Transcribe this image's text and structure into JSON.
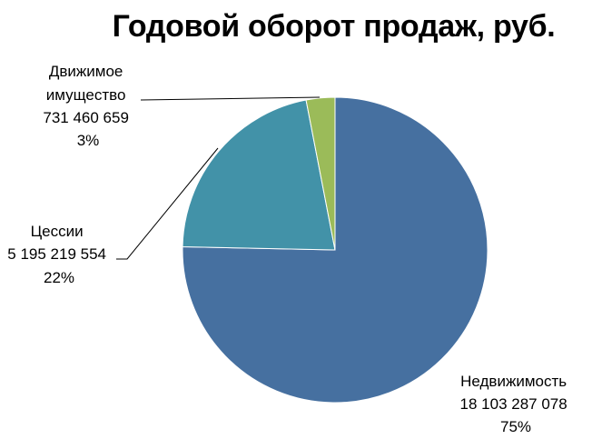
{
  "chart_data": {
    "type": "pie",
    "title": "Годовой оборот продаж, руб.",
    "slices": [
      {
        "label": "Недвижимость",
        "value_text": "18 103 287 078",
        "value": 18103287078,
        "percent_text": "75%",
        "color": "#4670A0"
      },
      {
        "label": "Цессии",
        "value_text": "5 195 219 554",
        "value": 5195219554,
        "percent_text": "22%",
        "color": "#4292A8"
      },
      {
        "label": "Движимое имущество",
        "label_lines": [
          "Движимое",
          "имущество"
        ],
        "value_text": "731 460 659",
        "value": 731460659,
        "percent_text": "3%",
        "color": "#9BBB59"
      }
    ],
    "start": "12 o'clock",
    "direction": "clockwise",
    "legend": "none"
  }
}
